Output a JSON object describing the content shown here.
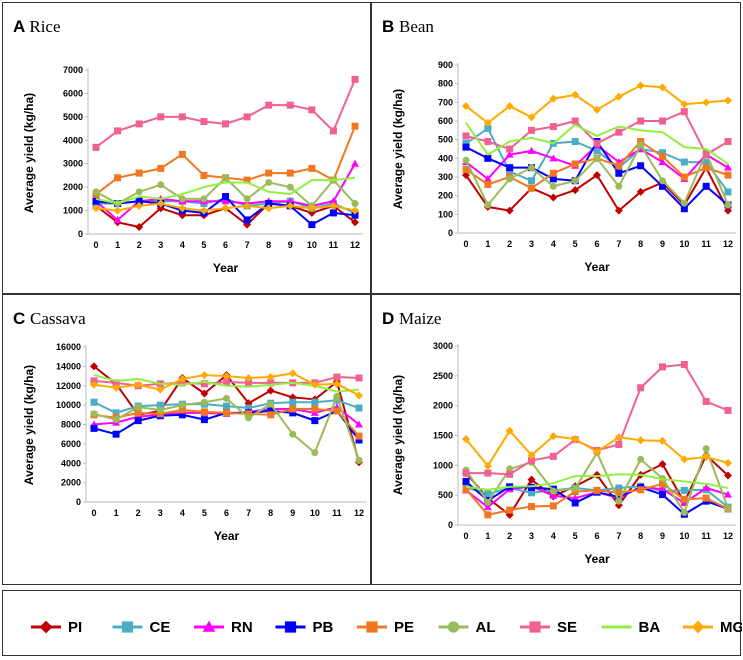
{
  "chart_data": [
    {
      "type": "line",
      "panel_letter": "A",
      "title": "Rice",
      "xlabel": "Year",
      "ylabel": "Average yield (kg/ha)",
      "x": [
        0,
        1,
        2,
        3,
        4,
        5,
        6,
        7,
        8,
        9,
        10,
        11,
        12
      ],
      "ylim": [
        0,
        7000
      ],
      "yticks": [
        0,
        1000,
        2000,
        3000,
        4000,
        5000,
        6000,
        7000
      ],
      "series": [
        {
          "name": "PI",
          "values": [
            1200,
            500,
            300,
            1100,
            800,
            800,
            1100,
            400,
            1300,
            1200,
            900,
            1200,
            500
          ]
        },
        {
          "name": "CE",
          "values": [
            1300,
            1300,
            1400,
            1400,
            1400,
            1300,
            1500,
            1200,
            1300,
            1400,
            1100,
            1300,
            900
          ]
        },
        {
          "name": "RN",
          "values": [
            1400,
            600,
            1400,
            1500,
            1400,
            1400,
            1400,
            1300,
            1400,
            1400,
            1200,
            1400,
            3000
          ]
        },
        {
          "name": "PB",
          "values": [
            1400,
            1300,
            1400,
            1300,
            1000,
            900,
            1600,
            600,
            1300,
            1200,
            400,
            900,
            800
          ]
        },
        {
          "name": "PE",
          "values": [
            1700,
            2400,
            2600,
            2800,
            3400,
            2500,
            2400,
            2300,
            2600,
            2600,
            2800,
            2300,
            4600
          ]
        },
        {
          "name": "AL",
          "values": [
            1800,
            1300,
            1800,
            2100,
            1500,
            1500,
            2400,
            1500,
            2200,
            2000,
            1200,
            2300,
            1300
          ]
        },
        {
          "name": "SE",
          "values": [
            3700,
            4400,
            4700,
            5000,
            5000,
            4800,
            4700,
            5000,
            5500,
            5500,
            5300,
            4400,
            6600
          ]
        },
        {
          "name": "BA",
          "values": [
            1500,
            1300,
            1600,
            1500,
            1700,
            2000,
            2200,
            2200,
            1800,
            1700,
            2300,
            2300,
            2400
          ]
        },
        {
          "name": "MG",
          "values": [
            1100,
            1000,
            1200,
            1300,
            1100,
            1000,
            1100,
            1200,
            1100,
            1200,
            1100,
            1200,
            1000
          ]
        }
      ]
    },
    {
      "type": "line",
      "panel_letter": "B",
      "title": "Bean",
      "xlabel": "Year",
      "ylabel": "Average yield (kg/ha)",
      "x": [
        0,
        1,
        2,
        3,
        4,
        5,
        6,
        7,
        8,
        9,
        10,
        11,
        12
      ],
      "ylim": [
        0,
        900
      ],
      "yticks": [
        0,
        100,
        200,
        300,
        400,
        500,
        600,
        700,
        800,
        900
      ],
      "series": [
        {
          "name": "PI",
          "values": [
            310,
            140,
            120,
            240,
            190,
            230,
            310,
            120,
            220,
            270,
            150,
            350,
            120
          ]
        },
        {
          "name": "CE",
          "values": [
            480,
            560,
            330,
            280,
            480,
            490,
            440,
            350,
            450,
            430,
            380,
            380,
            220
          ]
        },
        {
          "name": "RN",
          "values": [
            380,
            290,
            420,
            440,
            400,
            360,
            470,
            380,
            450,
            380,
            290,
            420,
            350
          ]
        },
        {
          "name": "PB",
          "values": [
            460,
            400,
            350,
            350,
            290,
            280,
            490,
            320,
            360,
            250,
            130,
            250,
            150
          ]
        },
        {
          "name": "PE",
          "values": [
            340,
            260,
            300,
            240,
            320,
            370,
            400,
            360,
            490,
            410,
            300,
            350,
            310
          ]
        },
        {
          "name": "AL",
          "values": [
            390,
            150,
            290,
            350,
            250,
            280,
            400,
            250,
            470,
            280,
            160,
            430,
            150
          ]
        },
        {
          "name": "SE",
          "values": [
            520,
            490,
            450,
            550,
            570,
            600,
            480,
            540,
            600,
            600,
            650,
            420,
            490
          ]
        },
        {
          "name": "BA",
          "values": [
            590,
            420,
            490,
            510,
            480,
            580,
            520,
            570,
            550,
            540,
            460,
            450,
            370
          ]
        },
        {
          "name": "MG",
          "values": [
            680,
            590,
            680,
            620,
            720,
            740,
            660,
            730,
            790,
            780,
            690,
            700,
            710
          ]
        }
      ]
    },
    {
      "type": "line",
      "panel_letter": "C",
      "title": "Cassava",
      "xlabel": "Year",
      "ylabel": "Average yield (kg/ha)",
      "x": [
        0,
        1,
        2,
        3,
        4,
        5,
        6,
        7,
        8,
        9,
        10,
        11,
        12
      ],
      "ylim": [
        0,
        16000
      ],
      "yticks": [
        0,
        2000,
        4000,
        6000,
        8000,
        10000,
        12000,
        14000,
        16000
      ],
      "series": [
        {
          "name": "PI",
          "values": [
            14000,
            12200,
            9000,
            9400,
            12800,
            11200,
            13100,
            10200,
            11500,
            10800,
            10600,
            12400,
            4100
          ]
        },
        {
          "name": "CE",
          "values": [
            10300,
            9200,
            9900,
            10000,
            10100,
            10100,
            9900,
            9700,
            10200,
            10300,
            10300,
            10500,
            9700
          ]
        },
        {
          "name": "RN",
          "values": [
            8000,
            8200,
            8800,
            9000,
            9200,
            9200,
            9100,
            9300,
            9600,
            9600,
            9200,
            9800,
            8000
          ]
        },
        {
          "name": "PB",
          "values": [
            7600,
            7000,
            8400,
            8900,
            9000,
            8500,
            9200,
            9200,
            9400,
            9200,
            8400,
            9400,
            6400
          ]
        },
        {
          "name": "PE",
          "values": [
            9000,
            8700,
            9200,
            9100,
            9500,
            9300,
            9200,
            9100,
            9000,
            9600,
            9600,
            9400,
            6800
          ]
        },
        {
          "name": "AL",
          "values": [
            9100,
            8500,
            9800,
            9500,
            10000,
            10300,
            10700,
            8700,
            10100,
            7000,
            5100,
            10900,
            4300
          ]
        },
        {
          "name": "SE",
          "values": [
            12500,
            12300,
            12000,
            12200,
            12300,
            12200,
            12400,
            12300,
            12300,
            12300,
            12300,
            12900,
            12800
          ]
        },
        {
          "name": "BA",
          "values": [
            13100,
            12500,
            12700,
            12200,
            12100,
            12400,
            12000,
            11900,
            12100,
            12300,
            12000,
            11400,
            11600
          ]
        },
        {
          "name": "MG",
          "values": [
            12100,
            11800,
            12100,
            11600,
            12700,
            13100,
            13000,
            12800,
            12900,
            13300,
            12100,
            12200,
            11000
          ]
        }
      ]
    },
    {
      "type": "line",
      "panel_letter": "D",
      "title": "Maize",
      "xlabel": "Year",
      "ylabel": "Average yield (kg/ha)",
      "x": [
        0,
        1,
        2,
        3,
        4,
        5,
        6,
        7,
        8,
        9,
        10,
        11,
        12
      ],
      "ylim": [
        0,
        3000
      ],
      "yticks": [
        0,
        500,
        1000,
        1500,
        2000,
        2500,
        3000
      ],
      "series": [
        {
          "name": "PI",
          "values": [
            870,
            450,
            170,
            760,
            480,
            650,
            840,
            330,
            840,
            1020,
            380,
            1170,
            830
          ]
        },
        {
          "name": "CE",
          "values": [
            630,
            520,
            620,
            540,
            580,
            620,
            580,
            620,
            650,
            570,
            580,
            590,
            300
          ]
        },
        {
          "name": "RN",
          "values": [
            580,
            300,
            600,
            650,
            490,
            450,
            550,
            450,
            640,
            600,
            370,
            620,
            510
          ]
        },
        {
          "name": "PB",
          "values": [
            730,
            410,
            640,
            630,
            600,
            370,
            550,
            470,
            630,
            510,
            180,
            400,
            270
          ]
        },
        {
          "name": "PE",
          "values": [
            600,
            170,
            250,
            310,
            320,
            560,
            580,
            540,
            590,
            690,
            430,
            450,
            270
          ]
        },
        {
          "name": "AL",
          "values": [
            920,
            380,
            940,
            1050,
            570,
            610,
            1210,
            400,
            1100,
            780,
            210,
            1280,
            280
          ]
        },
        {
          "name": "SE",
          "values": [
            870,
            870,
            850,
            1080,
            1150,
            1430,
            1250,
            1350,
            2300,
            2650,
            2690,
            2070,
            1920
          ]
        },
        {
          "name": "BA",
          "values": [
            640,
            590,
            640,
            650,
            700,
            820,
            820,
            850,
            840,
            770,
            730,
            690,
            620
          ]
        },
        {
          "name": "MG",
          "values": [
            1440,
            990,
            1580,
            1170,
            1490,
            1440,
            1230,
            1470,
            1420,
            1410,
            1100,
            1140,
            1040
          ]
        }
      ]
    }
  ],
  "legend": [
    {
      "name": "PI",
      "color": "#C00000",
      "marker": "diamond"
    },
    {
      "name": "CE",
      "color": "#4BACC6",
      "marker": "square"
    },
    {
      "name": "RN",
      "color": "#FF00FF",
      "marker": "triangle"
    },
    {
      "name": "PB",
      "color": "#0000FF",
      "marker": "square"
    },
    {
      "name": "PE",
      "color": "#F07820",
      "marker": "square"
    },
    {
      "name": "AL",
      "color": "#9BBB59",
      "marker": "circle"
    },
    {
      "name": "SE",
      "color": "#F06090",
      "marker": "square"
    },
    {
      "name": "BA",
      "color": "#92F040",
      "marker": "none"
    },
    {
      "name": "MG",
      "color": "#FFAA00",
      "marker": "diamond"
    }
  ]
}
